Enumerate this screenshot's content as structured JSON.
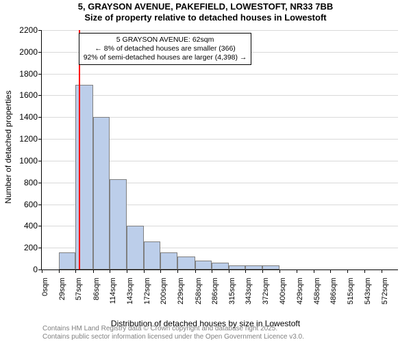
{
  "title_line1": "5, GRAYSON AVENUE, PAKEFIELD, LOWESTOFT, NR33 7BB",
  "title_line2": "Size of property relative to detached houses in Lowestoft",
  "title_fontsize": 13,
  "title_fontweight": "bold",
  "ylabel": "Number of detached properties",
  "xlabel": "Distribution of detached houses by size in Lowestoft",
  "axis_label_fontsize": 12,
  "footnote_line1": "Contains HM Land Registry data © Crown copyright and database right 2025.",
  "footnote_line2": "Contains public sector information licensed under the Open Government Licence v3.0.",
  "footnote_fontsize": 10,
  "footnote_color": "#808080",
  "chart": {
    "type": "histogram",
    "background_color": "#ffffff",
    "grid_color": "#d9d9d9",
    "bar_color": "#bcceea",
    "bar_border_color": "#7f7f7f",
    "bar_border_width": 1,
    "marker_line_color": "#ff0000",
    "marker_line_width": 2,
    "marker_x": 62,
    "x_min": 0,
    "x_max": 600,
    "y_min": 0,
    "y_max": 2200,
    "y_tick_step": 200,
    "y_ticks": [
      0,
      200,
      400,
      600,
      800,
      1000,
      1200,
      1400,
      1600,
      1800,
      2000,
      2200
    ],
    "x_tick_positions": [
      0,
      29,
      57,
      86,
      114,
      143,
      172,
      200,
      229,
      258,
      286,
      315,
      343,
      372,
      400,
      429,
      458,
      486,
      515,
      543,
      572
    ],
    "x_tick_labels": [
      "0sqm",
      "29sqm",
      "57sqm",
      "86sqm",
      "114sqm",
      "143sqm",
      "172sqm",
      "200sqm",
      "229sqm",
      "258sqm",
      "286sqm",
      "315sqm",
      "343sqm",
      "372sqm",
      "400sqm",
      "429sqm",
      "458sqm",
      "486sqm",
      "515sqm",
      "543sqm",
      "572sqm"
    ],
    "tick_label_fontsize": 11,
    "bin_edges": [
      0,
      29,
      57,
      86,
      114,
      143,
      172,
      200,
      229,
      258,
      286,
      315,
      343,
      372,
      400,
      429,
      458,
      486,
      515,
      543,
      572,
      600
    ],
    "counts": [
      0,
      160,
      1700,
      1400,
      830,
      400,
      260,
      160,
      120,
      80,
      60,
      40,
      40,
      40,
      0,
      0,
      0,
      0,
      0,
      0,
      0
    ],
    "annotation": {
      "lines": [
        "5 GRAYSON AVENUE: 62sqm",
        "← 8% of detached houses are smaller (366)",
        "92% of semi-detached houses are larger (4,398) →"
      ],
      "fontsize": 10.5,
      "border_color": "#000000",
      "background_color": "#ffffff",
      "box_left_x": 62,
      "box_top_y": 2175
    }
  }
}
